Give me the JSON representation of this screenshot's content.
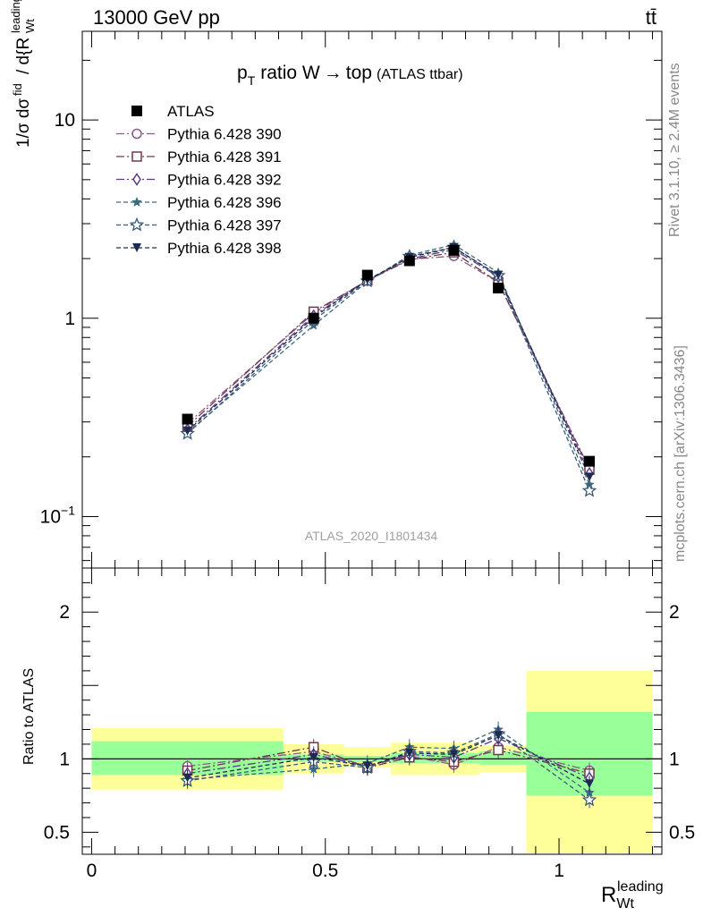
{
  "header": {
    "energy_label": "13000 GeV pp",
    "process_label": "tt̄"
  },
  "side": {
    "rivet_label": "Rivet 3.1.10, ≥ 2.4M events",
    "mcplots_label": "mcplots.cern.ch [arXiv:1306.3436]"
  },
  "chart_data": [
    {
      "type": "line",
      "title": "p_T ratio W → top (ATLAS ttbar)",
      "title_main": "ratio W",
      "title_arrow": "→",
      "title_top": "top",
      "title_sub": "(ATLAS ttbar)",
      "title_p": "p",
      "title_T": "T",
      "watermark": "ATLAS_2020_I1801434",
      "ylabel": "1/σ dσ^fid / d{R_Wt^leading}",
      "yscale": "log",
      "ylim": [
        0.055,
        28
      ],
      "xlim": [
        -0.02,
        1.22
      ],
      "ytick_labels": [
        "10^-1",
        "1",
        "10"
      ],
      "ytick_values": [
        0.1,
        1,
        10
      ],
      "x": [
        0.205,
        0.475,
        0.59,
        0.68,
        0.775,
        0.87,
        1.065
      ],
      "x_bins": [
        [
          0.0,
          0.41
        ],
        [
          0.41,
          0.54
        ],
        [
          0.54,
          0.64
        ],
        [
          0.64,
          0.72
        ],
        [
          0.72,
          0.83
        ],
        [
          0.83,
          0.93
        ],
        [
          0.93,
          1.2
        ]
      ],
      "series": [
        {
          "name": "ATLAS",
          "color": "#000000",
          "marker": "square-filled",
          "dash": "none",
          "values": [
            0.31,
            1.0,
            1.65,
            1.95,
            2.2,
            1.42,
            0.19
          ]
        },
        {
          "name": "Pythia 6.428 390",
          "color": "#8a5a8a",
          "marker": "circle-open",
          "dash": "9 3 2 3",
          "values": [
            0.295,
            1.06,
            1.56,
            1.98,
            2.06,
            1.52,
            0.175
          ]
        },
        {
          "name": "Pythia 6.428 391",
          "color": "#6e3a4a",
          "marker": "square-open",
          "dash": "9 3 2 3",
          "values": [
            0.285,
            1.08,
            1.55,
            1.97,
            2.15,
            1.52,
            0.172
          ]
        },
        {
          "name": "Pythia 6.428 392",
          "color": "#5a3a86",
          "marker": "diamond-open",
          "dash": "9 3 2 3",
          "values": [
            0.275,
            1.03,
            1.56,
            1.99,
            2.22,
            1.62,
            0.165
          ]
        },
        {
          "name": "Pythia 6.428 396",
          "color": "#3e6a7e",
          "marker": "star-filled",
          "dash": "5 3",
          "values": [
            0.265,
            0.92,
            1.53,
            2.08,
            2.35,
            1.7,
            0.145
          ]
        },
        {
          "name": "Pythia 6.428 397",
          "color": "#3a5a7a",
          "marker": "star-open",
          "dash": "5 3",
          "values": [
            0.262,
            0.98,
            1.54,
            2.05,
            2.28,
            1.64,
            0.135
          ]
        },
        {
          "name": "Pythia 6.428 398",
          "color": "#1e2a50",
          "marker": "triangle-down-filled",
          "dash": "5 3",
          "values": [
            0.27,
            1.01,
            1.56,
            2.03,
            2.27,
            1.65,
            0.158
          ]
        }
      ]
    },
    {
      "type": "line",
      "ylabel": "Ratio to ATLAS",
      "xlabel": "R_Wt^leading",
      "xlabel_main": "R",
      "xlabel_sub": "Wt",
      "xlabel_sup": "leading",
      "ylim": [
        0.35,
        2.3
      ],
      "xlim": [
        -0.02,
        1.22
      ],
      "ytick_labels": [
        "0.5",
        "1",
        "2"
      ],
      "ytick_values": [
        0.5,
        1,
        2
      ],
      "xtick_labels": [
        "0",
        "0.5",
        "1"
      ],
      "xtick_values": [
        0,
        0.5,
        1
      ],
      "band_inner": [
        [
          0.89,
          1.12
        ],
        [
          0.98,
          1.03
        ],
        [
          0.98,
          1.02
        ],
        [
          0.97,
          1.04
        ],
        [
          0.97,
          1.04
        ],
        [
          0.96,
          1.05
        ],
        [
          0.75,
          1.32
        ]
      ],
      "band_outer": [
        [
          0.79,
          1.21
        ],
        [
          0.9,
          1.1
        ],
        [
          0.94,
          1.08
        ],
        [
          0.89,
          1.11
        ],
        [
          0.89,
          1.11
        ],
        [
          0.91,
          1.09
        ],
        [
          0.36,
          1.6
        ]
      ],
      "band_inner_color": "#99ff99",
      "band_outer_color": "#ffff99",
      "series": [
        {
          "name": "Pythia 6.428 390",
          "values": [
            0.95,
            1.05,
            0.95,
            1.02,
            0.96,
            1.08,
            0.92
          ]
        },
        {
          "name": "Pythia 6.428 391",
          "values": [
            0.92,
            1.08,
            0.94,
            1.01,
            0.98,
            1.06,
            0.9
          ]
        },
        {
          "name": "Pythia 6.428 392",
          "values": [
            0.9,
            1.03,
            0.95,
            1.03,
            1.01,
            1.14,
            0.87
          ]
        },
        {
          "name": "Pythia 6.428 396",
          "values": [
            0.86,
            0.93,
            0.97,
            1.08,
            1.07,
            1.2,
            0.77
          ]
        },
        {
          "name": "Pythia 6.428 397",
          "values": [
            0.85,
            0.98,
            0.94,
            1.05,
            1.04,
            1.17,
            0.72
          ]
        },
        {
          "name": "Pythia 6.428 398",
          "values": [
            0.87,
            1.01,
            0.95,
            1.04,
            1.03,
            1.16,
            0.83
          ]
        }
      ]
    }
  ]
}
